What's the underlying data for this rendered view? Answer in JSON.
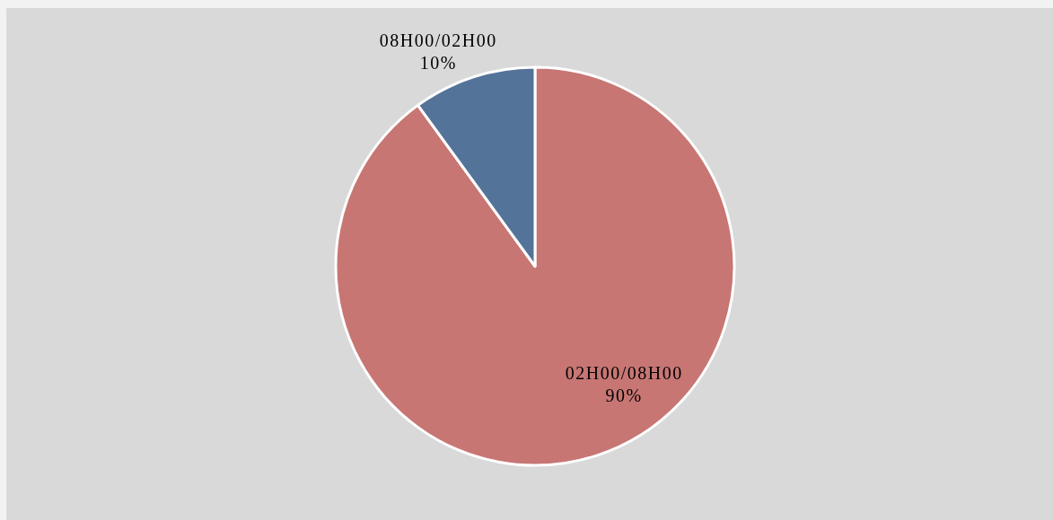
{
  "chart_data": {
    "type": "pie",
    "categories": [
      "02H00/08H00",
      "08H00/02H00"
    ],
    "values": [
      90,
      10
    ],
    "colors": [
      "#c77674",
      "#547398"
    ],
    "value_labels": [
      "90%",
      "10%"
    ]
  }
}
